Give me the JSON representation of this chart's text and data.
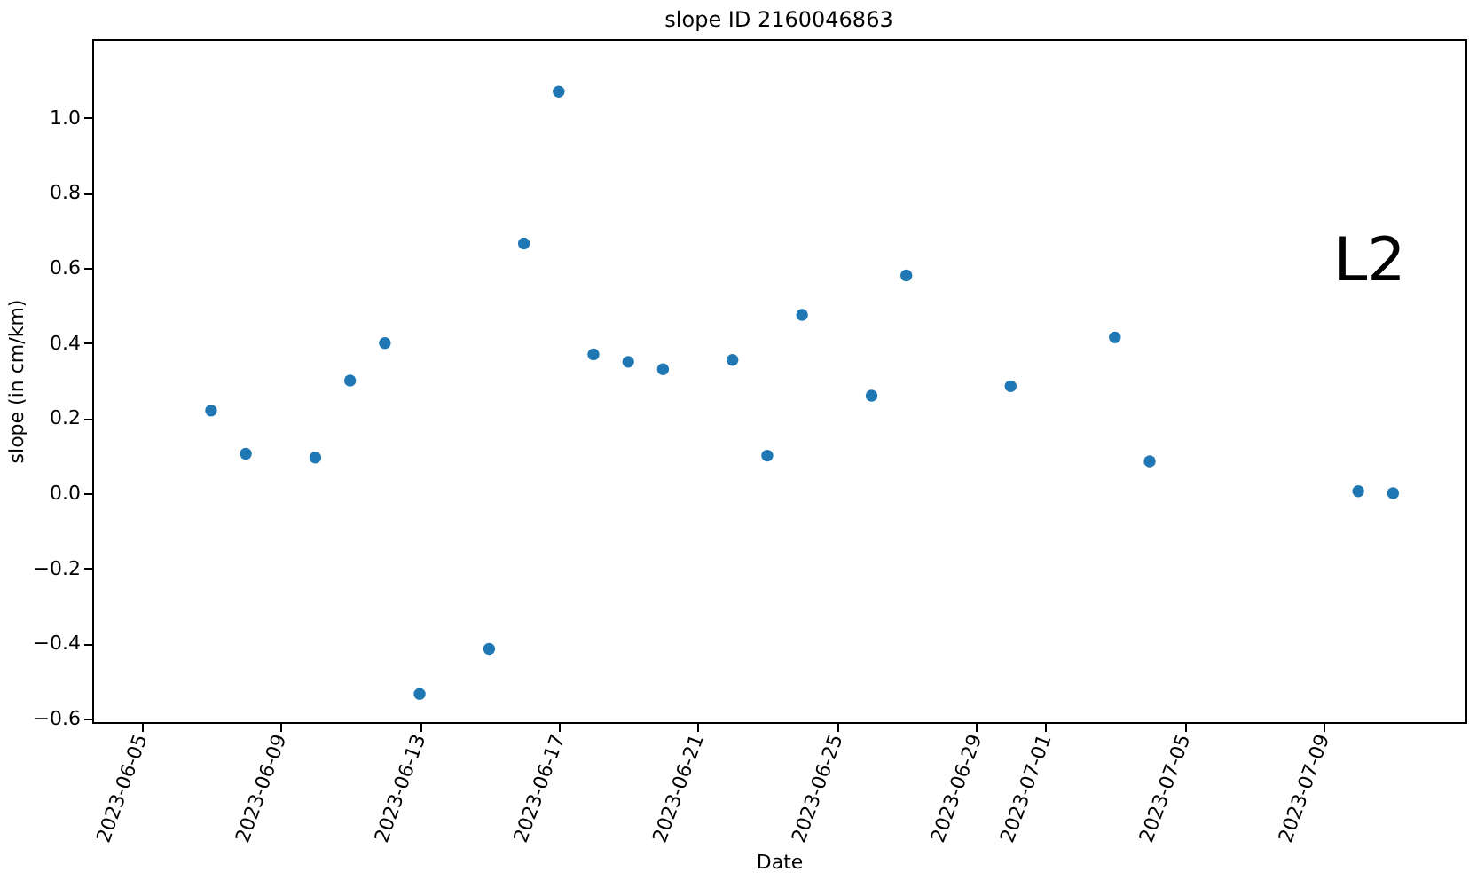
{
  "chart_data": {
    "type": "scatter",
    "title": "slope ID 2160046863",
    "xlabel": "Date",
    "ylabel": "slope (in cm/km)",
    "annotations": [
      "L2"
    ],
    "x": [
      "2023-06-07",
      "2023-06-08",
      "2023-06-10",
      "2023-06-11",
      "2023-06-12",
      "2023-06-13",
      "2023-06-15",
      "2023-06-16",
      "2023-06-17",
      "2023-06-18",
      "2023-06-19",
      "2023-06-20",
      "2023-06-22",
      "2023-06-23",
      "2023-06-24",
      "2023-06-26",
      "2023-06-27",
      "2023-06-30",
      "2023-07-03",
      "2023-07-04",
      "2023-07-10",
      "2023-07-11"
    ],
    "series": [
      {
        "color": "#1f77b4",
        "values": [
          0.22,
          0.105,
          0.095,
          0.3,
          0.4,
          -0.535,
          -0.415,
          0.665,
          1.07,
          0.37,
          0.35,
          0.33,
          0.355,
          0.1,
          0.475,
          0.26,
          0.58,
          0.285,
          0.415,
          0.085,
          0.005,
          0.0
        ]
      }
    ],
    "xlim": [
      "2023-06-03T14:00",
      "2023-07-13T02:00"
    ],
    "xticks": [
      "2023-06-05",
      "2023-06-09",
      "2023-06-13",
      "2023-06-17",
      "2023-06-21",
      "2023-06-25",
      "2023-06-29",
      "2023-07-01",
      "2023-07-05",
      "2023-07-09"
    ],
    "ylim": [
      -0.61,
      1.21
    ],
    "yticks": [
      {
        "value": -0.6,
        "label": "−0.6"
      },
      {
        "value": -0.4,
        "label": "−0.4"
      },
      {
        "value": -0.2,
        "label": "−0.2"
      },
      {
        "value": 0,
        "label": "0.0"
      },
      {
        "value": 0.2,
        "label": "0.2"
      },
      {
        "value": 0.4,
        "label": "0.4"
      },
      {
        "value": 0.6,
        "label": "0.6"
      },
      {
        "value": 0.8,
        "label": "0.8"
      },
      {
        "value": 1,
        "label": "1.0"
      }
    ],
    "grid": false,
    "legend": false,
    "marker": "circle"
  }
}
